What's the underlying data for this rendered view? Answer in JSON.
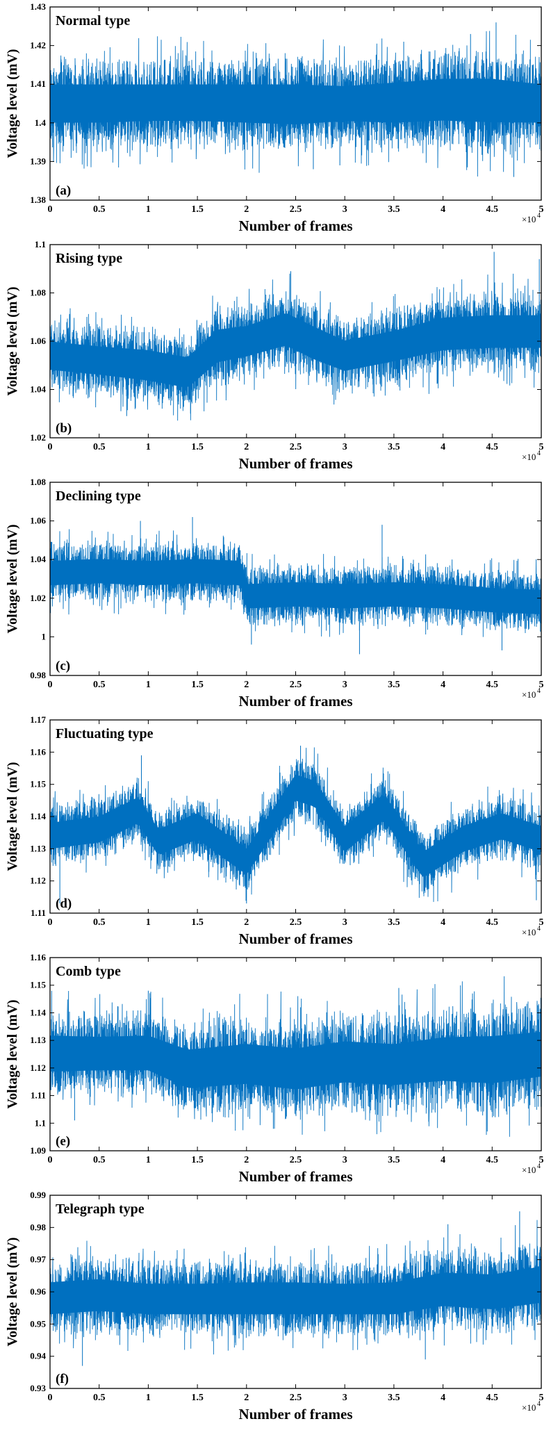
{
  "figure": {
    "series_color": "#0070C0",
    "x_multiplier": "×10",
    "x_multiplier_exp": "4"
  },
  "chart_data": [
    {
      "type": "line",
      "panel_label": "(a)",
      "title": "Normal type",
      "xlabel": "Number of frames",
      "ylabel": "Voltage level (mV)",
      "xlim": [
        0,
        5
      ],
      "ylim": [
        1.38,
        1.43
      ],
      "x_ticks": [
        0,
        0.5,
        1,
        1.5,
        2,
        2.5,
        3,
        3.5,
        4,
        4.5,
        5
      ],
      "x_tick_labels": [
        "0",
        "0.5",
        "1",
        "1.5",
        "2",
        "2.5",
        "3",
        "3.5",
        "4",
        "4.5",
        "5"
      ],
      "y_ticks": [
        1.38,
        1.39,
        1.4,
        1.41,
        1.42,
        1.43
      ],
      "y_tick_labels": [
        "1.38",
        "1.39",
        "1.4",
        "1.41",
        "1.42",
        "1.43"
      ],
      "envelope": {
        "x": [
          0,
          0.5,
          1,
          1.5,
          2,
          2.5,
          3,
          3.5,
          4,
          4.5,
          5
        ],
        "mean": [
          1.405,
          1.405,
          1.405,
          1.405,
          1.405,
          1.405,
          1.405,
          1.405,
          1.406,
          1.406,
          1.405
        ],
        "upper": [
          1.416,
          1.416,
          1.416,
          1.416,
          1.416,
          1.416,
          1.415,
          1.417,
          1.418,
          1.418,
          1.416
        ],
        "lower": [
          1.394,
          1.394,
          1.395,
          1.395,
          1.394,
          1.393,
          1.395,
          1.394,
          1.394,
          1.393,
          1.394
        ]
      },
      "spikes_up": [
        [
          4.28,
          1.423
        ],
        [
          4.54,
          1.426
        ],
        [
          3.6,
          1.421
        ]
      ],
      "spikes_down": [
        [
          4.72,
          1.386
        ],
        [
          2.68,
          1.388
        ],
        [
          2.95,
          1.389
        ]
      ]
    },
    {
      "type": "line",
      "panel_label": "(b)",
      "title": "Rising type",
      "xlabel": "Number of frames",
      "ylabel": "Voltage level (mV)",
      "xlim": [
        0,
        5
      ],
      "ylim": [
        1.02,
        1.1
      ],
      "x_ticks": [
        0,
        0.5,
        1,
        1.5,
        2,
        2.5,
        3,
        3.5,
        4,
        4.5,
        5
      ],
      "x_tick_labels": [
        "0",
        "0.5",
        "1",
        "1.5",
        "2",
        "2.5",
        "3",
        "3.5",
        "4",
        "4.5",
        "5"
      ],
      "y_ticks": [
        1.02,
        1.04,
        1.06,
        1.08,
        1.1
      ],
      "y_tick_labels": [
        "1.02",
        "1.04",
        "1.06",
        "1.08",
        "1.1"
      ],
      "envelope": {
        "x": [
          0,
          0.5,
          1,
          1.4,
          1.7,
          2,
          2.4,
          2.7,
          3,
          3.5,
          4,
          4.5,
          5
        ],
        "mean": [
          1.054,
          1.052,
          1.05,
          1.047,
          1.058,
          1.06,
          1.065,
          1.059,
          1.054,
          1.058,
          1.063,
          1.064,
          1.064
        ],
        "upper": [
          1.067,
          1.065,
          1.064,
          1.061,
          1.073,
          1.074,
          1.08,
          1.074,
          1.068,
          1.072,
          1.078,
          1.079,
          1.079
        ],
        "lower": [
          1.041,
          1.039,
          1.036,
          1.033,
          1.043,
          1.046,
          1.05,
          1.044,
          1.04,
          1.044,
          1.048,
          1.049,
          1.049
        ]
      },
      "spikes_up": [
        [
          4.52,
          1.097
        ],
        [
          2.45,
          1.089
        ],
        [
          4.98,
          1.094
        ]
      ],
      "spikes_down": [
        [
          0.78,
          1.029
        ],
        [
          1.43,
          1.03
        ]
      ]
    },
    {
      "type": "line",
      "panel_label": "(c)",
      "title": "Declining type",
      "xlabel": "Number of frames",
      "ylabel": "Voltage level (mV)",
      "xlim": [
        0,
        5
      ],
      "ylim": [
        0.98,
        1.08
      ],
      "x_ticks": [
        0,
        0.5,
        1,
        1.5,
        2,
        2.5,
        3,
        3.5,
        4,
        4.5,
        5
      ],
      "x_tick_labels": [
        "0",
        "0.5",
        "1",
        "1.5",
        "2",
        "2.5",
        "3",
        "3.5",
        "4",
        "4.5",
        "5"
      ],
      "y_ticks": [
        0.98,
        1,
        1.02,
        1.04,
        1.06,
        1.08
      ],
      "y_tick_labels": [
        "0.98",
        "1",
        "1.02",
        "1.04",
        "1.06",
        "1.08"
      ],
      "envelope": {
        "x": [
          0,
          0.5,
          1,
          1.5,
          1.95,
          2.0,
          2.5,
          3,
          3.5,
          4,
          4.5,
          5
        ],
        "mean": [
          1.033,
          1.034,
          1.033,
          1.034,
          1.033,
          1.021,
          1.022,
          1.021,
          1.022,
          1.021,
          1.019,
          1.018
        ],
        "upper": [
          1.047,
          1.048,
          1.047,
          1.048,
          1.047,
          1.035,
          1.036,
          1.035,
          1.036,
          1.035,
          1.033,
          1.032
        ],
        "lower": [
          1.019,
          1.02,
          1.019,
          1.02,
          1.019,
          1.007,
          1.008,
          1.007,
          1.008,
          1.007,
          1.005,
          1.004
        ]
      },
      "spikes_up": [
        [
          1.45,
          1.062
        ],
        [
          0.92,
          1.06
        ],
        [
          3.38,
          1.058
        ]
      ],
      "spikes_down": [
        [
          3.15,
          0.991
        ],
        [
          4.6,
          0.993
        ],
        [
          2.05,
          0.996
        ]
      ]
    },
    {
      "type": "line",
      "panel_label": "(d)",
      "title": "Fluctuating type",
      "xlabel": "Number of frames",
      "ylabel": "Voltage level (mV)",
      "xlim": [
        0,
        5
      ],
      "ylim": [
        1.11,
        1.17
      ],
      "x_ticks": [
        0,
        0.5,
        1,
        1.5,
        2,
        2.5,
        3,
        3.5,
        4,
        4.5,
        5
      ],
      "x_tick_labels": [
        "0",
        "0.5",
        "1",
        "1.5",
        "2",
        "2.5",
        "3",
        "3.5",
        "4",
        "4.5",
        "5"
      ],
      "y_ticks": [
        1.11,
        1.12,
        1.13,
        1.14,
        1.15,
        1.16,
        1.17
      ],
      "y_tick_labels": [
        "1.11",
        "1.12",
        "1.13",
        "1.14",
        "1.15",
        "1.16",
        "1.17"
      ],
      "envelope": {
        "x": [
          0,
          0.5,
          0.9,
          1.1,
          1.5,
          2.0,
          2.5,
          2.7,
          3.0,
          3.4,
          3.8,
          4.2,
          4.6,
          5
        ],
        "mean": [
          1.134,
          1.136,
          1.142,
          1.132,
          1.137,
          1.126,
          1.149,
          1.147,
          1.133,
          1.143,
          1.125,
          1.133,
          1.137,
          1.133
        ],
        "upper": [
          1.143,
          1.145,
          1.151,
          1.141,
          1.146,
          1.135,
          1.158,
          1.156,
          1.142,
          1.152,
          1.134,
          1.142,
          1.146,
          1.142
        ],
        "lower": [
          1.125,
          1.127,
          1.133,
          1.123,
          1.128,
          1.117,
          1.14,
          1.138,
          1.124,
          1.134,
          1.116,
          1.124,
          1.128,
          1.124
        ]
      },
      "spikes_up": [
        [
          2.55,
          1.162
        ],
        [
          0.93,
          1.159
        ]
      ],
      "spikes_down": [
        [
          0.1,
          1.113
        ],
        [
          4.95,
          1.114
        ],
        [
          2.0,
          1.113
        ]
      ]
    },
    {
      "type": "line",
      "panel_label": "(e)",
      "title": "Comb type",
      "xlabel": "Number of frames",
      "ylabel": "Voltage level (mV)",
      "xlim": [
        0,
        5
      ],
      "ylim": [
        1.09,
        1.16
      ],
      "x_ticks": [
        0,
        0.5,
        1,
        1.5,
        2,
        2.5,
        3,
        3.5,
        4,
        4.5,
        5
      ],
      "x_tick_labels": [
        "0",
        "0.5",
        "1",
        "1.5",
        "2",
        "2.5",
        "3",
        "3.5",
        "4",
        "4.5",
        "5"
      ],
      "y_ticks": [
        1.09,
        1.1,
        1.11,
        1.12,
        1.13,
        1.14,
        1.15,
        1.16
      ],
      "y_tick_labels": [
        "1.09",
        "1.1",
        "1.11",
        "1.12",
        "1.13",
        "1.14",
        "1.15",
        "1.16"
      ],
      "envelope": {
        "x": [
          0,
          0.5,
          1,
          1.4,
          2,
          2.5,
          3,
          3.5,
          4,
          4.5,
          5
        ],
        "mean": [
          1.125,
          1.125,
          1.125,
          1.119,
          1.121,
          1.119,
          1.122,
          1.121,
          1.123,
          1.123,
          1.125
        ],
        "upper": [
          1.14,
          1.139,
          1.14,
          1.136,
          1.138,
          1.137,
          1.139,
          1.138,
          1.141,
          1.142,
          1.143
        ],
        "lower": [
          1.111,
          1.112,
          1.112,
          1.105,
          1.106,
          1.104,
          1.106,
          1.105,
          1.106,
          1.104,
          1.107
        ]
      },
      "spikes_up": [
        [
          1.0,
          1.148
        ],
        [
          3.55,
          1.149
        ],
        [
          4.3,
          1.147
        ]
      ],
      "spikes_down": [
        [
          4.45,
          1.097
        ],
        [
          0.25,
          1.101
        ]
      ]
    },
    {
      "type": "line",
      "panel_label": "(f)",
      "title": "Telegraph type",
      "xlabel": "Number of frames",
      "ylabel": "Voltage level (mV)",
      "xlim": [
        0,
        5
      ],
      "ylim": [
        0.93,
        0.99
      ],
      "x_ticks": [
        0,
        0.5,
        1,
        1.5,
        2,
        2.5,
        3,
        3.5,
        4,
        4.5,
        5
      ],
      "x_tick_labels": [
        "0",
        "0.5",
        "1",
        "1.5",
        "2",
        "2.5",
        "3",
        "3.5",
        "4",
        "4.5",
        "5"
      ],
      "y_ticks": [
        0.93,
        0.94,
        0.95,
        0.96,
        0.97,
        0.98,
        0.99
      ],
      "y_tick_labels": [
        "0.93",
        "0.94",
        "0.95",
        "0.96",
        "0.97",
        "0.98",
        "0.99"
      ],
      "envelope": {
        "x": [
          0,
          0.5,
          1,
          1.5,
          2,
          2.5,
          3,
          3.5,
          4,
          4.5,
          5
        ],
        "mean": [
          0.958,
          0.959,
          0.958,
          0.958,
          0.958,
          0.958,
          0.958,
          0.958,
          0.961,
          0.96,
          0.962
        ],
        "upper": [
          0.969,
          0.97,
          0.968,
          0.968,
          0.969,
          0.969,
          0.968,
          0.969,
          0.972,
          0.972,
          0.975
        ],
        "lower": [
          0.947,
          0.948,
          0.947,
          0.947,
          0.947,
          0.947,
          0.947,
          0.947,
          0.949,
          0.948,
          0.95
        ]
      },
      "spikes_up": [
        [
          4.78,
          0.985
        ],
        [
          4.05,
          0.981
        ]
      ],
      "spikes_down": [
        [
          0.33,
          0.937
        ],
        [
          3.82,
          0.939
        ]
      ]
    }
  ]
}
